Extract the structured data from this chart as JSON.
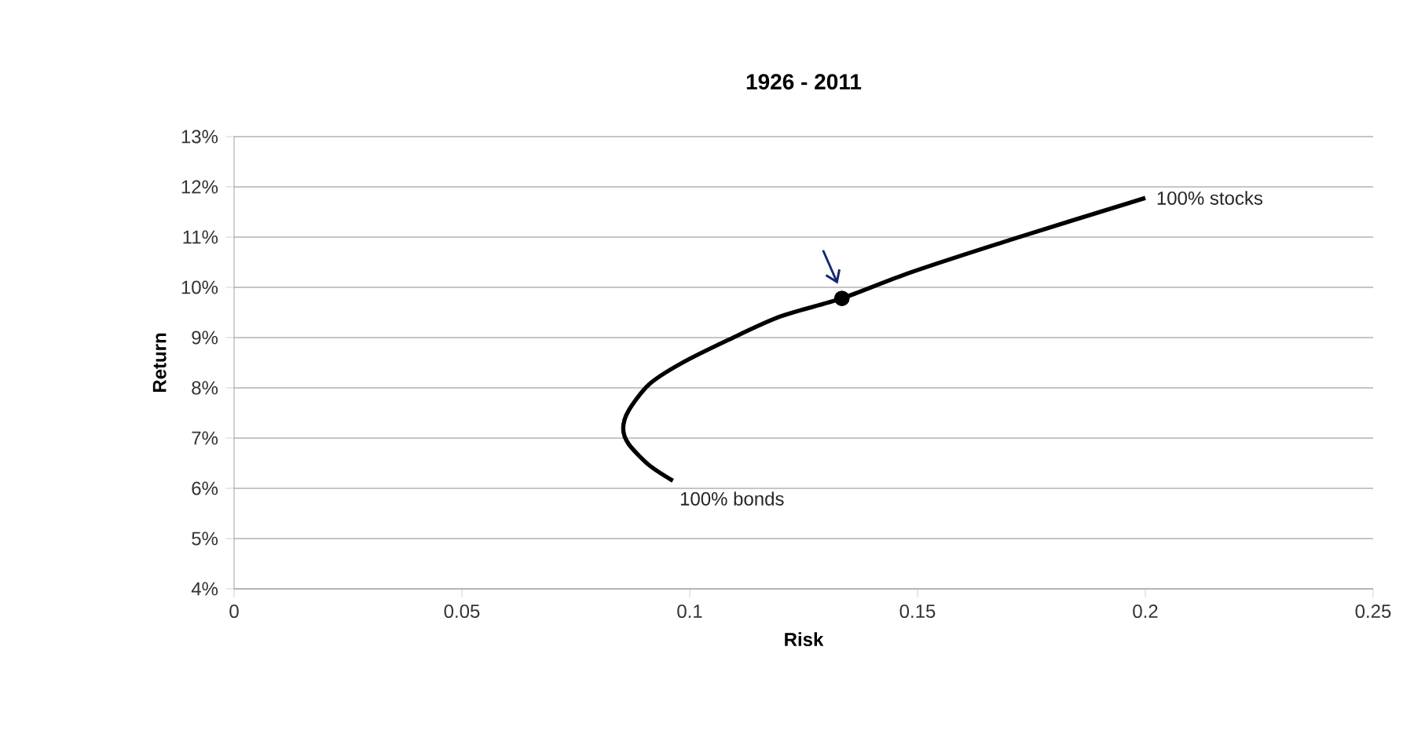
{
  "chart_data": {
    "type": "line",
    "title": "1926 - 2011",
    "xlabel": "Risk",
    "ylabel": "Return",
    "series": [
      {
        "color": "#000000",
        "x": [
          0.0963,
          0.0911,
          0.0866,
          0.0854,
          0.0866,
          0.0911,
          0.098,
          0.1084,
          0.1199,
          0.1334,
          0.1486,
          0.1716,
          0.2
        ],
        "values": [
          6.15,
          6.46,
          6.88,
          7.19,
          7.55,
          8.07,
          8.48,
          8.95,
          9.42,
          9.78,
          10.3,
          10.98,
          11.78
        ]
      },
      {
        "type": "scatter",
        "color": "#000000",
        "marker": "circle",
        "x": [
          0.1334
        ],
        "values": [
          9.78
        ]
      }
    ],
    "annotations": [
      {
        "text": "100% stocks",
        "x": 0.2,
        "y": 11.78
      },
      {
        "text": "100% bonds",
        "x": 0.0963,
        "y": 6.15
      }
    ],
    "xlim": [
      0,
      0.25
    ],
    "xticks": [
      0,
      0.05,
      0.1,
      0.15,
      0.2,
      0.25
    ],
    "ylim": [
      4,
      13
    ],
    "yticks": [
      {
        "value": 4,
        "label": "4%"
      },
      {
        "value": 5,
        "label": "5%"
      },
      {
        "value": 6,
        "label": "6%"
      },
      {
        "value": 7,
        "label": "7%"
      },
      {
        "value": 8,
        "label": "8%"
      },
      {
        "value": 9,
        "label": "9%"
      },
      {
        "value": 10,
        "label": "10%"
      },
      {
        "value": 11,
        "label": "11%"
      },
      {
        "value": 12,
        "label": "12%"
      },
      {
        "value": 13,
        "label": "13%"
      }
    ],
    "grid": "y"
  }
}
